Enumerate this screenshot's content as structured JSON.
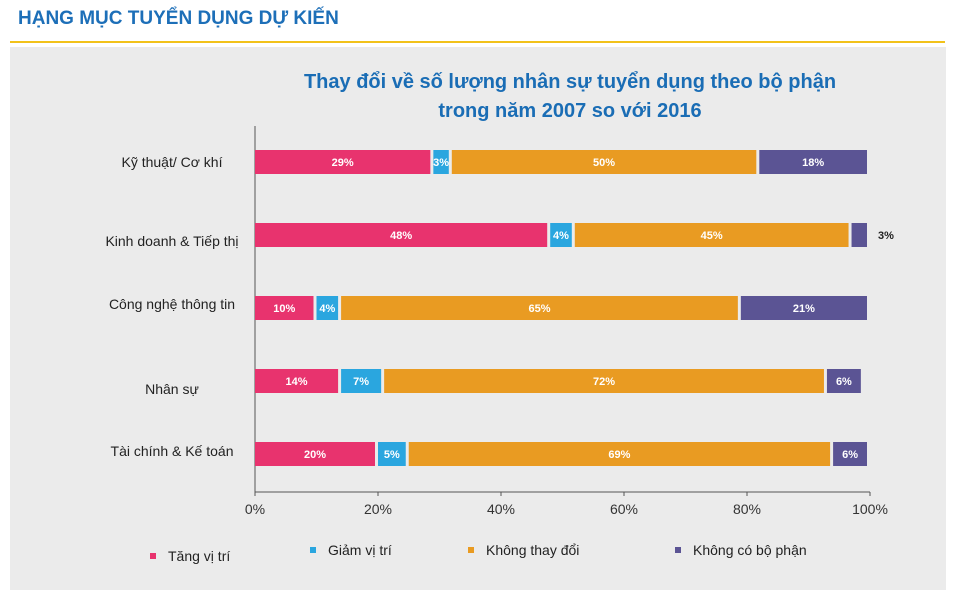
{
  "header": {
    "title": "HẠNG MỤC TUYỂN DỤNG DỰ KIẾN"
  },
  "chart_data": {
    "type": "bar",
    "orientation": "horizontal",
    "stacked": true,
    "title": [
      "Thay đổi về số lượng nhân sự tuyển dụng theo bộ phận",
      "trong năm 2007 so với 2016"
    ],
    "categories": [
      "Kỹ thuật/ Cơ khí",
      "Kinh doanh & Tiếp thị",
      "Công nghệ thông tin",
      "Nhân sự",
      "Tài chính & Kế toán"
    ],
    "series": [
      {
        "name": "Tăng vị trí",
        "color": "#e8336e",
        "values": [
          29,
          48,
          10,
          14,
          20
        ],
        "labels": [
          "29%",
          "48%",
          "10%",
          "14%",
          "20%"
        ]
      },
      {
        "name": "Giảm vị trí",
        "color": "#2aa6df",
        "values": [
          3,
          4,
          4,
          7,
          5
        ],
        "labels": [
          "3%",
          "4%",
          "4%",
          "7%",
          "5%"
        ]
      },
      {
        "name": "Không thay đổi",
        "color": "#e99b22",
        "values": [
          50,
          45,
          65,
          72,
          69
        ],
        "labels": [
          "50%",
          "45%",
          "65%",
          "72%",
          "69%"
        ]
      },
      {
        "name": "Không có bộ phận",
        "color": "#5b5494",
        "values": [
          18,
          3,
          21,
          6,
          6
        ],
        "labels": [
          "18%",
          "3%",
          "21%",
          "6%",
          "6%"
        ]
      }
    ],
    "xlim": [
      0,
      100
    ],
    "xticks": [
      "0%",
      "20%",
      "40%",
      "60%",
      "80%",
      "100%"
    ],
    "grid": false,
    "legend_position": "bottom"
  }
}
